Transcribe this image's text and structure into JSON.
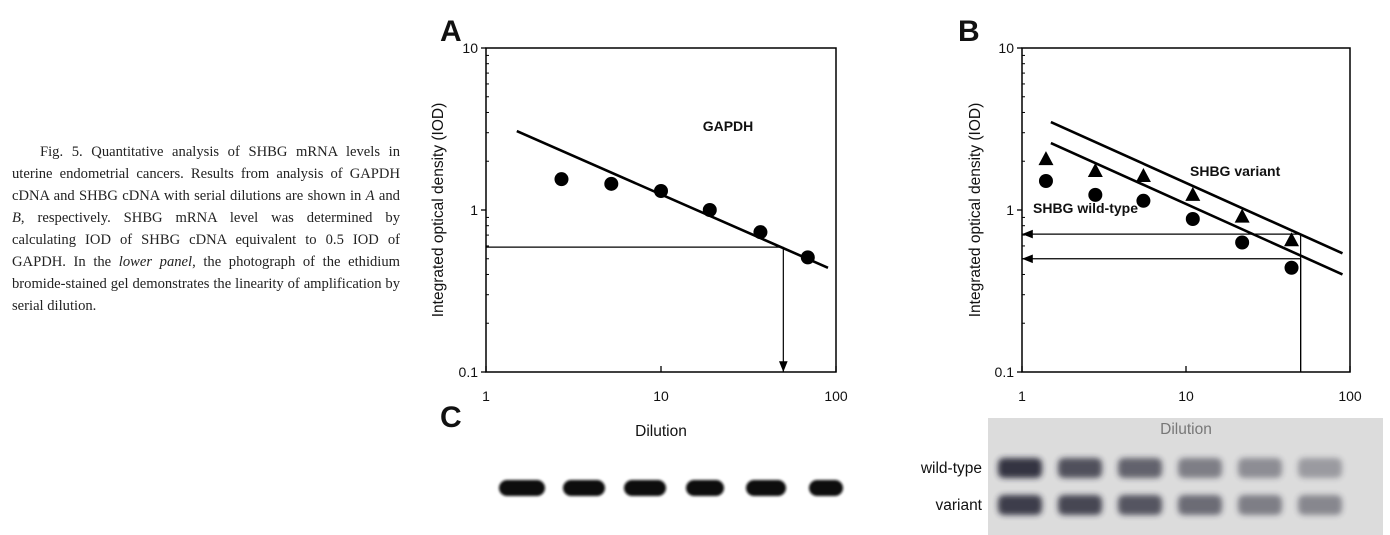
{
  "caption": {
    "segments": [
      {
        "text": "Fig. 5. Quantitative analysis of SHBG mRNA levels in uterine endometrial cancers. Results from analysis of GAPDH cDNA and SHBG cDNA with serial dilutions are shown in ",
        "italic": false
      },
      {
        "text": "A",
        "italic": true
      },
      {
        "text": " and ",
        "italic": false
      },
      {
        "text": "B",
        "italic": true
      },
      {
        "text": ", respectively. SHBG mRNA level was determined by calculating IOD of SHBG cDNA equivalent to 0.5 IOD of GAPDH. In the ",
        "italic": false
      },
      {
        "text": "lower panel",
        "italic": true
      },
      {
        "text": ", the photograph of the ethidium bromide-stained gel demonstrates the linearity of amplification by serial dilution.",
        "italic": false
      }
    ]
  },
  "chart_data": [
    {
      "type": "scatter",
      "panel_label": "A",
      "xlabel": "Dilution",
      "ylabel": "Integrated optical density (IOD)",
      "xscale": "log",
      "yscale": "log",
      "xlim": [
        1,
        100
      ],
      "ylim": [
        0.1,
        10
      ],
      "xticks": [
        1,
        10,
        100
      ],
      "yticks": [
        0.1,
        1,
        10
      ],
      "series": [
        {
          "name": "GAPDH",
          "marker": "circle",
          "color": "#000000",
          "x": [
            2.7,
            5.2,
            10,
            19,
            37,
            69
          ],
          "values": [
            1.55,
            1.45,
            1.31,
            1.0,
            0.73,
            0.51
          ]
        }
      ],
      "fit_lines": [
        {
          "x": [
            1.5,
            90
          ],
          "y": [
            3.07,
            0.44
          ]
        }
      ],
      "reference_lines": [
        {
          "x": 50,
          "y": 0.59,
          "arrow": "down"
        }
      ]
    },
    {
      "type": "scatter",
      "panel_label": "B",
      "xlabel": "Dilution",
      "ylabel": "Integrated optical density (IOD)",
      "xscale": "log",
      "yscale": "log",
      "xlim": [
        1,
        100
      ],
      "ylim": [
        0.1,
        10
      ],
      "xticks": [
        1,
        10,
        100
      ],
      "yticks": [
        0.1,
        1,
        10
      ],
      "series": [
        {
          "name": "SHBG variant",
          "marker": "triangle",
          "color": "#000000",
          "x": [
            1.4,
            2.8,
            5.5,
            11,
            22,
            44
          ],
          "values": [
            2.06,
            1.74,
            1.62,
            1.24,
            0.91,
            0.65
          ]
        },
        {
          "name": "SHBG wild-type",
          "marker": "circle",
          "color": "#000000",
          "x": [
            1.4,
            2.8,
            5.5,
            11,
            22,
            44
          ],
          "values": [
            1.51,
            1.24,
            1.14,
            0.88,
            0.63,
            0.44
          ]
        }
      ],
      "fit_lines": [
        {
          "x": [
            1.5,
            90
          ],
          "y": [
            3.49,
            0.54
          ]
        },
        {
          "x": [
            1.5,
            90
          ],
          "y": [
            2.59,
            0.4
          ]
        }
      ],
      "reference_lines": [
        {
          "x": 50,
          "y": 0.71,
          "arrow": "left"
        },
        {
          "x": 50,
          "y": 0.5,
          "arrow": "left"
        }
      ]
    }
  ],
  "gel": {
    "panel_label": "C",
    "row_labels": [
      "wild-type",
      "variant"
    ]
  }
}
